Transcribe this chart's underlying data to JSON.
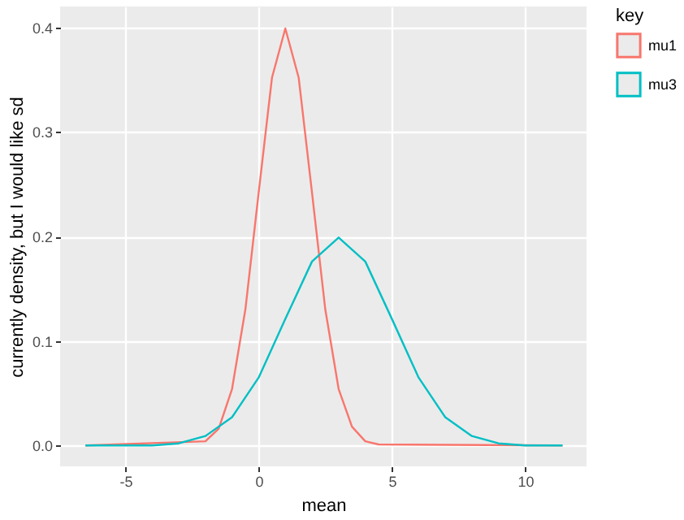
{
  "chart_data": {
    "type": "line",
    "xlabel": "mean",
    "ylabel": "currently density, but I would like sd",
    "legend_title": "key",
    "xlim": [
      -7.45,
      12.3
    ],
    "ylim": [
      -0.02,
      0.42
    ],
    "xticks": [
      -5,
      0,
      5,
      10
    ],
    "yticks": [
      {
        "value": 0,
        "label": "0.0"
      },
      0.1,
      0.2,
      0.3,
      0.4
    ],
    "grid": true,
    "legend": "right",
    "series": [
      {
        "name": "mu1",
        "color": "#f8766d",
        "x": [
          -6.5,
          -2,
          -1.5,
          -1,
          -0.5,
          0,
          0.5,
          1,
          1.5,
          2,
          2.5,
          3,
          3.5,
          4,
          4.5,
          11.4
        ],
        "values": [
          0,
          0.004,
          0.016,
          0.054,
          0.13,
          0.242,
          0.352,
          0.399,
          0.352,
          0.242,
          0.13,
          0.054,
          0.018,
          0.004,
          0.001,
          0
        ]
      },
      {
        "name": "mu3",
        "color": "#00bfc4",
        "x": [
          -6.5,
          -4,
          -3,
          -2,
          -1,
          0,
          1,
          2,
          3,
          4,
          5,
          6,
          7,
          8,
          9,
          10,
          11.4
        ],
        "values": [
          0,
          0,
          0.002,
          0.009,
          0.027,
          0.065,
          0.121,
          0.176,
          0.199,
          0.176,
          0.121,
          0.065,
          0.027,
          0.009,
          0.002,
          0,
          0
        ]
      }
    ]
  }
}
